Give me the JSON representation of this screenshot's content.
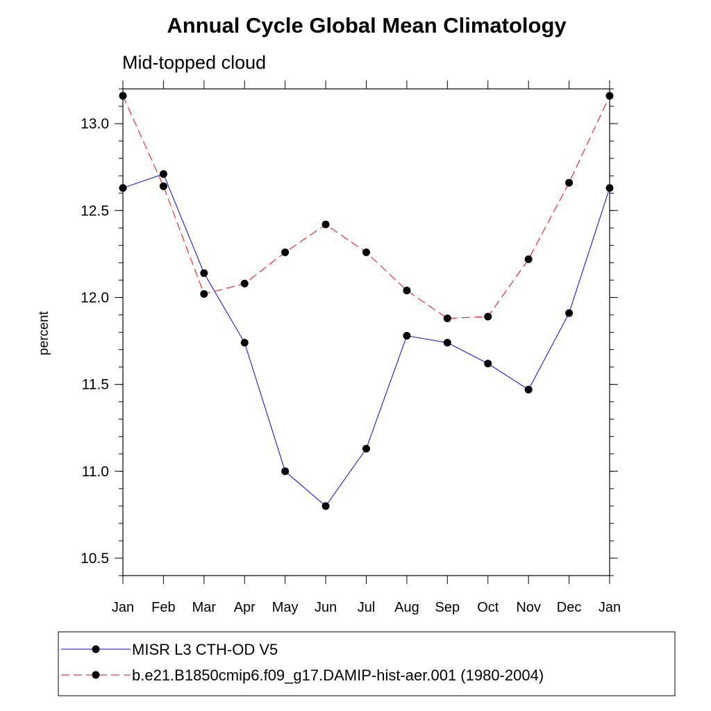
{
  "chart_data": {
    "type": "line",
    "title": "Annual Cycle Global Mean Climatology",
    "subtitle": "Mid-topped cloud",
    "xlabel": "",
    "ylabel": "percent",
    "categories": [
      "Jan",
      "Feb",
      "Mar",
      "Apr",
      "May",
      "Jun",
      "Jul",
      "Aug",
      "Sep",
      "Oct",
      "Nov",
      "Dec",
      "Jan"
    ],
    "ylim": [
      10.4,
      13.2
    ],
    "yticks": [
      "10.5",
      "11.0",
      "11.5",
      "12.0",
      "12.5",
      "13.0"
    ],
    "ytick_values": [
      10.5,
      11.0,
      11.5,
      12.0,
      12.5,
      13.0
    ],
    "yminor_step": 0.1,
    "grid": false,
    "legend_placement": "bottom",
    "series": [
      {
        "name": "MISR L3 CTH-OD V5",
        "color": "#0000ff",
        "dash": "solid",
        "values": [
          12.63,
          12.71,
          12.14,
          11.74,
          11.0,
          10.8,
          11.13,
          11.78,
          11.74,
          11.62,
          11.47,
          11.91,
          12.63
        ]
      },
      {
        "name": "b.e21.B1850cmip6.f09_g17.DAMIP-hist-aer.001 (1980-2004)",
        "color": "#ff0000",
        "dash": "dashed",
        "values": [
          13.16,
          12.64,
          12.02,
          12.08,
          12.26,
          12.42,
          12.26,
          12.04,
          11.88,
          11.89,
          12.22,
          12.66,
          13.16
        ]
      }
    ]
  }
}
